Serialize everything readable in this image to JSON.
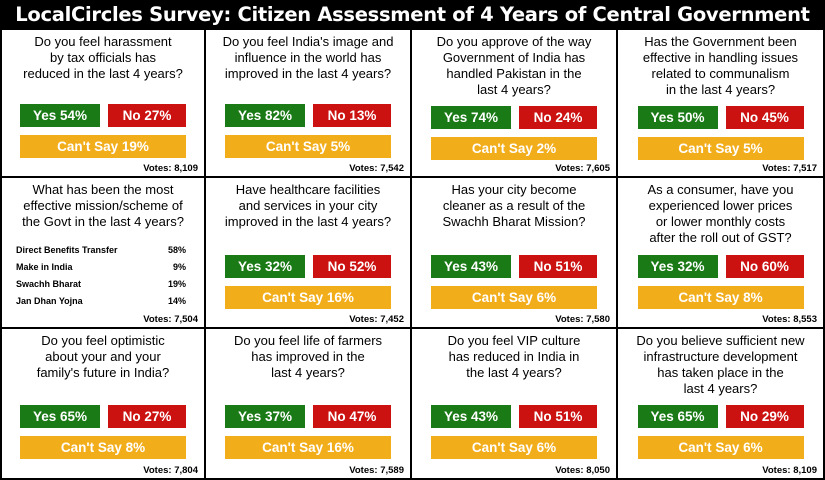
{
  "banner": {
    "title": "LocalCircles Survey: Citizen Assessment of 4 Years of Central Government"
  },
  "chart_data": [
    {
      "type": "table",
      "question": "Do you feel harassment\nby tax officials has\nreduced in the last 4 years?",
      "yes": "Yes 54%",
      "no": "No 27%",
      "cant_say": "Can't Say 19%",
      "votes": "Votes: 8,109",
      "values": {
        "yes": 54,
        "no": 27,
        "cant_say": 19
      }
    },
    {
      "type": "table",
      "question": "Do you feel India's image and\ninfluence in the world has\nimproved in the last 4 years?",
      "yes": "Yes 82%",
      "no": "No 13%",
      "cant_say": "Can't Say 5%",
      "votes": "Votes: 7,542",
      "values": {
        "yes": 82,
        "no": 13,
        "cant_say": 5
      }
    },
    {
      "type": "table",
      "question": "Do you approve of the way\nGovernment of India has\nhandled Pakistan in the\nlast 4 years?",
      "yes": "Yes 74%",
      "no": "No 24%",
      "cant_say": "Can't Say 2%",
      "votes": "Votes: 7,605",
      "values": {
        "yes": 74,
        "no": 24,
        "cant_say": 2
      }
    },
    {
      "type": "table",
      "question": "Has the Government been\neffective in handling issues\nrelated to communalism\nin the last 4 years?",
      "yes": "Yes 50%",
      "no": "No 45%",
      "cant_say": "Can't Say 5%",
      "votes": "Votes: 7,517",
      "values": {
        "yes": 50,
        "no": 45,
        "cant_say": 5
      }
    },
    {
      "type": "table",
      "question": "What has been the most\neffective mission/scheme of\nthe Govt in the last 4 years?",
      "items": [
        {
          "label": "Direct Benefits Transfer",
          "pct": "58%",
          "value": 58
        },
        {
          "label": "Make in India",
          "pct": "9%",
          "value": 9
        },
        {
          "label": "Swachh Bharat",
          "pct": "19%",
          "value": 19
        },
        {
          "label": "Jan Dhan Yojna",
          "pct": "14%",
          "value": 14
        }
      ],
      "votes": "Votes: 7,504"
    },
    {
      "type": "table",
      "question": "Have healthcare facilities\nand services in your city\nimproved in the last 4 years?",
      "yes": "Yes 32%",
      "no": "No 52%",
      "cant_say": "Can't Say 16%",
      "votes": "Votes: 7,452",
      "values": {
        "yes": 32,
        "no": 52,
        "cant_say": 16
      }
    },
    {
      "type": "table",
      "question": "Has your city become\ncleaner as a result of the\nSwachh Bharat Mission?",
      "yes": "Yes 43%",
      "no": "No 51%",
      "cant_say": "Can't Say 6%",
      "votes": "Votes: 7,580",
      "values": {
        "yes": 43,
        "no": 51,
        "cant_say": 6
      }
    },
    {
      "type": "table",
      "question": "As a consumer, have you\nexperienced lower prices\nor lower monthly costs\nafter the roll out of GST?",
      "yes": "Yes 32%",
      "no": "No 60%",
      "cant_say": "Can't Say 8%",
      "votes": "Votes: 8,553",
      "values": {
        "yes": 32,
        "no": 60,
        "cant_say": 8
      }
    },
    {
      "type": "table",
      "question": "Do you feel optimistic\nabout your and your\nfamily's future in India?",
      "yes": "Yes 65%",
      "no": "No 27%",
      "cant_say": "Can't Say 8%",
      "votes": "Votes: 7,804",
      "values": {
        "yes": 65,
        "no": 27,
        "cant_say": 8
      }
    },
    {
      "type": "table",
      "question": "Do you feel life of farmers\nhas improved in the\nlast 4 years?",
      "yes": "Yes 37%",
      "no": "No 47%",
      "cant_say": "Can't Say 16%",
      "votes": "Votes: 7,589",
      "values": {
        "yes": 37,
        "no": 47,
        "cant_say": 16
      }
    },
    {
      "type": "table",
      "question": "Do you feel VIP culture\nhas reduced in India in\nthe last 4 years?",
      "yes": "Yes 43%",
      "no": "No 51%",
      "cant_say": "Can't Say 6%",
      "votes": "Votes: 8,050",
      "values": {
        "yes": 43,
        "no": 51,
        "cant_say": 6
      }
    },
    {
      "type": "table",
      "question": "Do you believe sufficient new\ninfrastructure development\nhas taken place in the\nlast 4 years?",
      "yes": "Yes 65%",
      "no": "No 29%",
      "cant_say": "Can't Say 6%",
      "votes": "Votes: 8,109",
      "values": {
        "yes": 65,
        "no": 29,
        "cant_say": 6
      }
    }
  ],
  "colors": {
    "yes": "#1a7a16",
    "no": "#cc1111",
    "cant_say": "#f2ad1b",
    "banner_bg": "#000000"
  }
}
